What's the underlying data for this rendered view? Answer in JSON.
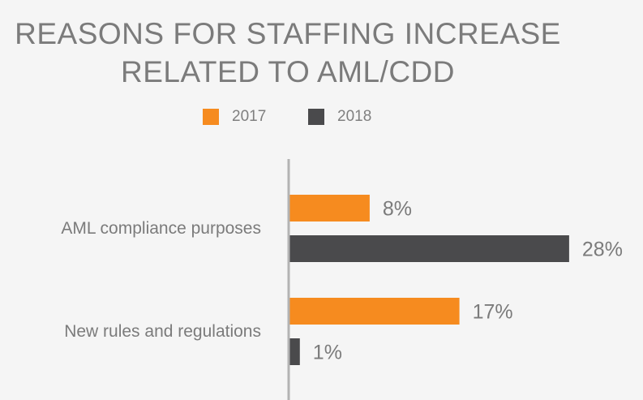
{
  "title": {
    "line1": "REASONS FOR STAFFING INCREASE",
    "line2": "RELATED TO AML/CDD"
  },
  "colors": {
    "s2017": "#f68b1f",
    "s2018": "#4a4a4c",
    "axis": "#b3b3b3",
    "text": "#7b7b7b"
  },
  "legend": [
    {
      "label": "2017",
      "color": "#f68b1f"
    },
    {
      "label": "2018",
      "color": "#4a4a4c"
    }
  ],
  "chart_data": {
    "type": "bar",
    "orientation": "horizontal",
    "title": "REASONS FOR STAFFING INCREASE RELATED TO AML/CDD",
    "categories": [
      "AML compliance purposes",
      "New rules and regulations"
    ],
    "series": [
      {
        "name": "2017",
        "values": [
          8,
          17
        ],
        "labels": [
          "8%",
          "17%"
        ],
        "color": "#f68b1f"
      },
      {
        "name": "2018",
        "values": [
          28,
          1
        ],
        "labels": [
          "28%",
          "1%"
        ],
        "color": "#4a4a4c"
      }
    ],
    "unit": "%",
    "legend_position": "top",
    "grid": false
  }
}
